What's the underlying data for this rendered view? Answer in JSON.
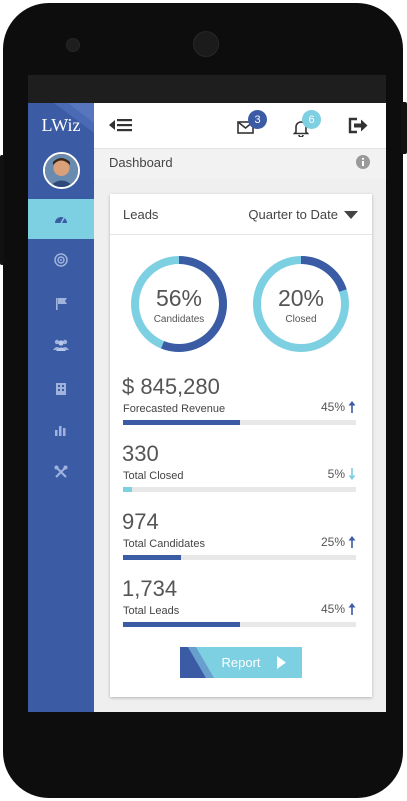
{
  "app": {
    "logo": "LWiz"
  },
  "colors": {
    "primary": "#3b5ba5",
    "accent": "#7dcfe2",
    "up": "#3b5ba5",
    "down": "#7dcfe2"
  },
  "sidebar": {
    "items": [
      {
        "icon": "dashboard-icon",
        "active": true
      },
      {
        "icon": "target-icon",
        "active": false
      },
      {
        "icon": "flag-icon",
        "active": false
      },
      {
        "icon": "users-icon",
        "active": false
      },
      {
        "icon": "building-icon",
        "active": false
      },
      {
        "icon": "bar-chart-icon",
        "active": false
      },
      {
        "icon": "tools-icon",
        "active": false
      }
    ]
  },
  "topbar": {
    "menu_icon": "menu-collapse-icon",
    "mail_badge": "3",
    "bell_badge": "6",
    "logout_icon": "logout-icon"
  },
  "breadcrumb": {
    "title": "Dashboard"
  },
  "card": {
    "title": "Leads",
    "period": "Quarter to Date",
    "donuts": [
      {
        "percent": "56%",
        "label": "Candidates",
        "value": 0.56
      },
      {
        "percent": "20%",
        "label": "Closed",
        "value": 0.2
      }
    ],
    "metrics": [
      {
        "value": "$ 845,280",
        "label": "Forecasted Revenue",
        "percent": "45%",
        "trend": "up",
        "fill": 0.5
      },
      {
        "value": "330",
        "label": "Total Closed",
        "percent": "5%",
        "trend": "down",
        "fill": 0.04
      },
      {
        "value": "974",
        "label": "Total Candidates",
        "percent": "25%",
        "trend": "up",
        "fill": 0.25
      },
      {
        "value": "1,734",
        "label": "Total Leads",
        "percent": "45%",
        "trend": "up",
        "fill": 0.5
      }
    ],
    "report_button": "Report"
  }
}
